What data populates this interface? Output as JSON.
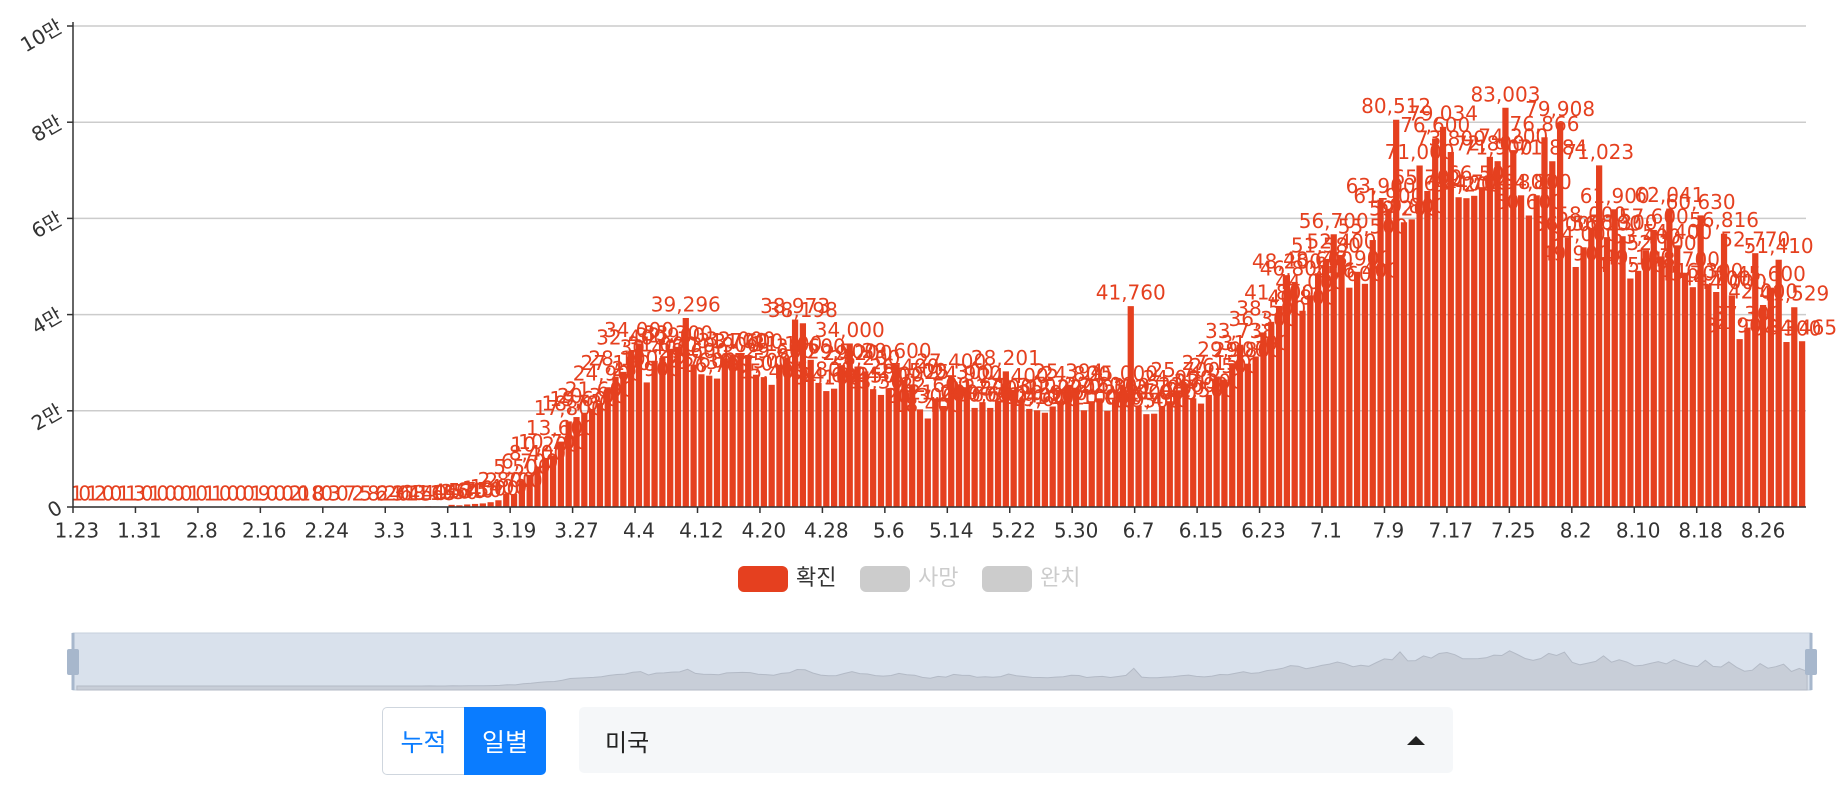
{
  "chart_data": {
    "type": "bar",
    "categories": [
      "1.23",
      null,
      null,
      null,
      null,
      null,
      null,
      null,
      "1.31",
      null,
      null,
      null,
      null,
      null,
      null,
      null,
      "2.8",
      null,
      null,
      null,
      null,
      null,
      null,
      null,
      "2.16",
      null,
      null,
      null,
      null,
      null,
      null,
      null,
      "2.24",
      null,
      null,
      null,
      null,
      null,
      null,
      null,
      "3.3",
      null,
      null,
      null,
      null,
      null,
      null,
      null,
      "3.11",
      null,
      null,
      null,
      null,
      null,
      null,
      null,
      "3.19",
      null,
      null,
      null,
      null,
      null,
      null,
      null,
      "3.27",
      null,
      null,
      null,
      null,
      null,
      null,
      null,
      "4.4",
      null,
      null,
      null,
      null,
      null,
      null,
      null,
      "4.12",
      null,
      null,
      null,
      null,
      null,
      null,
      null,
      "4.20",
      null,
      null,
      null,
      null,
      null,
      null,
      null,
      "4.28",
      null,
      null,
      null,
      null,
      null,
      null,
      null,
      "5.6",
      null,
      null,
      null,
      null,
      null,
      null,
      null,
      "5.14",
      null,
      null,
      null,
      null,
      null,
      null,
      null,
      "5.22",
      null,
      null,
      null,
      null,
      null,
      null,
      null,
      "5.30",
      null,
      null,
      null,
      null,
      null,
      null,
      null,
      "6.7",
      null,
      null,
      null,
      null,
      null,
      null,
      null,
      "6.15",
      null,
      null,
      null,
      null,
      null,
      null,
      null,
      "6.23",
      null,
      null,
      null,
      null,
      null,
      null,
      null,
      "7.1",
      null,
      null,
      null,
      null,
      null,
      null,
      null,
      "7.9",
      null,
      null,
      null,
      null,
      null,
      null,
      null,
      "7.17",
      null,
      null,
      null,
      null,
      null,
      null,
      null,
      "7.25",
      null,
      null,
      null,
      null,
      null,
      null,
      null,
      "8.2",
      null,
      null,
      null,
      null,
      null,
      null,
      null,
      "8.10",
      null,
      null,
      null,
      null,
      null,
      null,
      null,
      "8.18",
      null,
      null,
      null,
      null,
      null,
      null,
      null,
      "8.26",
      null,
      null,
      null,
      null,
      null
    ],
    "series": [
      {
        "name": "확진",
        "color": "#e5401f",
        "visible": true,
        "values": [
          1,
          0,
          1,
          2,
          0,
          0,
          1,
          1,
          3,
          0,
          1,
          0,
          0,
          0,
          0,
          1,
          0,
          1,
          1,
          0,
          0,
          0,
          0,
          1,
          9,
          0,
          0,
          0,
          2,
          0,
          18,
          0,
          0,
          3,
          0,
          7,
          2,
          5,
          8,
          6,
          24,
          20,
          31,
          68,
          45,
          140,
          116,
          65,
          446,
          350,
          530,
          640,
          750,
          1000,
          1400,
          2800,
          2700,
          5500,
          6700,
          8400,
          10200,
          10700,
          13600,
          17800,
          18700,
          19600,
          20300,
          21600,
          24900,
          27100,
          28100,
          32400,
          34000,
          25900,
          30400,
          31000,
          32900,
          33300,
          39296,
          29600,
          27600,
          27300,
          26700,
          30900,
          31700,
          32000,
          31600,
          27500,
          27000,
          25400,
          29600,
          31100,
          38973,
          38198,
          30600,
          25800,
          24100,
          24600,
          29500,
          34000,
          29200,
          28200,
          24500,
          23300,
          24700,
          29600,
          26400,
          25500,
          20300,
          18400,
          22600,
          21000,
          27400,
          25300,
          24900,
          20600,
          21800,
          20600,
          22100,
          28201,
          24400,
          22300,
          20400,
          20100,
          19600,
          20900,
          22000,
          25394,
          24800,
          20100,
          22000,
          22600,
          20000,
          22300,
          25000,
          41760,
          21000,
          19300,
          19400,
          21000,
          22000,
          24000,
          25700,
          22600,
          21500,
          23300,
          27150,
          26500,
          29900,
          33738,
          29800,
          31300,
          36300,
          38500,
          41800,
          48200,
          46800,
          40800,
          44000,
          48600,
          51580,
          56700,
          52400,
          45600,
          48900,
          46400,
          55500,
          63900,
          61900,
          80512,
          59200,
          59800,
          71000,
          65700,
          76600,
          79034,
          73800,
          64400,
          64200,
          64700,
          66500,
          72800,
          71900,
          83003,
          74200,
          64800,
          60600,
          64800,
          76866,
          71884,
          79908,
          56000,
          49900,
          54000,
          58000,
          71023,
          56100,
          61900,
          56300,
          47500,
          49100,
          53400,
          57600,
          52100,
          62041,
          54400,
          48700,
          45700,
          60630,
          46300,
          44700,
          56816,
          44000,
          34900,
          37300,
          52770,
          42000,
          45600,
          51410,
          34300,
          41529,
          34465
        ],
        "value_labels": [
          "1",
          "0",
          "1",
          "2",
          "0",
          "0",
          "1",
          "1",
          "3",
          "0",
          "1",
          "0",
          "0",
          "0",
          "0",
          "1",
          "0",
          "1",
          "1",
          "0",
          "0",
          "0",
          "0",
          "1",
          "9",
          "0",
          "0",
          "0",
          "2",
          "0",
          "18",
          "0",
          "0",
          "3",
          "0",
          "7",
          "2",
          "5",
          "8",
          "6",
          "24",
          "20",
          "31",
          "68",
          "45",
          "140",
          "116",
          "65",
          "446",
          "350",
          "530",
          "640",
          "750",
          "1,000",
          "1,400",
          "2,800",
          "2,700",
          "5,500",
          "6,700",
          "8,400",
          "10,200",
          "10,700",
          "13,600",
          "17,800",
          "18,700",
          "19,600",
          "20,300",
          "21,600",
          "24,900",
          "27,100",
          "28,100",
          "32,400",
          "34,000",
          "25,900",
          "30,400",
          "31,000",
          "32,900",
          "33,300",
          "39,296",
          "29,600",
          "27,600",
          "27,300",
          "26,700",
          "30,900",
          "31,700",
          "32,000",
          "31,600",
          "27,500",
          "27,000",
          "25,400",
          "29,600",
          "31,100",
          "38,973",
          "38,198",
          "30,600",
          "25,800",
          "24,100",
          "24,600",
          "29,500",
          "34,000",
          "29,200",
          "28,200",
          "24,500",
          "23,300",
          "24,700",
          "29,600",
          "26,400",
          "25,500",
          "20,300",
          "18,400",
          "22,600",
          "21,000",
          "27,400",
          "25,300",
          "24,900",
          "20,600",
          "21,800",
          "20,600",
          "22,100",
          "28,201",
          "24,400",
          "22,300",
          "20,400",
          "20,100",
          "19,600",
          "20,900",
          "22,000",
          "25,394",
          "24,800",
          "20,100",
          "22,000",
          "22,600",
          "20,000",
          "22,300",
          "25,000",
          "41,760",
          "21,000",
          "19,300",
          "19,400",
          "21,000",
          "22,000",
          "24,000",
          "25,700",
          "22,600",
          "21,500",
          "23,300",
          "27,150",
          "26,500",
          "29,900",
          "33,738",
          "29,800",
          "31,300",
          "36,300",
          "38,500",
          "41,800",
          "48,200",
          "46,800",
          "40,800",
          "44,000",
          "48,600",
          "51,580",
          "56,700",
          "52,400",
          "45,600",
          "48,900",
          "46,400",
          "55,500",
          "63,900",
          "61,900",
          "80,512",
          "59,200",
          "59,800",
          "71,000",
          "65,700",
          "76,600",
          "79,034",
          "73,800",
          "64,400",
          "64,200",
          "64,700",
          "66,500",
          "72,800",
          "71,900",
          "83,003",
          "74,200",
          "64,800",
          "60,600",
          "64,800",
          "76,866",
          "71,884",
          "79,908",
          "56,000",
          "49,900",
          "54,000",
          "58,000",
          "71,023",
          "56,100",
          "61,900",
          "56,300",
          "47,500",
          "49,100",
          "53,400",
          "57,600",
          "52,100",
          "62,041",
          "54,400",
          "48,700",
          "45,700",
          "60,630",
          "46,300",
          "44,700",
          "56,816",
          "44,000",
          "34,900",
          "37,300",
          "52,770",
          "42,000",
          "45,600",
          "51,410",
          "34,300",
          "41,529",
          "34,465"
        ]
      },
      {
        "name": "사망",
        "color": "#cccccc",
        "visible": false
      },
      {
        "name": "완치",
        "color": "#cccccc",
        "visible": false
      }
    ],
    "ylim": [
      0,
      100000
    ],
    "yticks": [
      0,
      {
        "value": 20000,
        "label": "2만"
      },
      {
        "value": 40000,
        "label": "4만"
      },
      {
        "value": 60000,
        "label": "6만"
      },
      {
        "value": 80000,
        "label": "8만"
      },
      {
        "value": 100000,
        "label": "10만"
      }
    ],
    "grid": true,
    "legend": "bottom"
  },
  "controls": {
    "modes": [
      "누적",
      "일별"
    ],
    "active_mode": 1,
    "country": "미국"
  }
}
